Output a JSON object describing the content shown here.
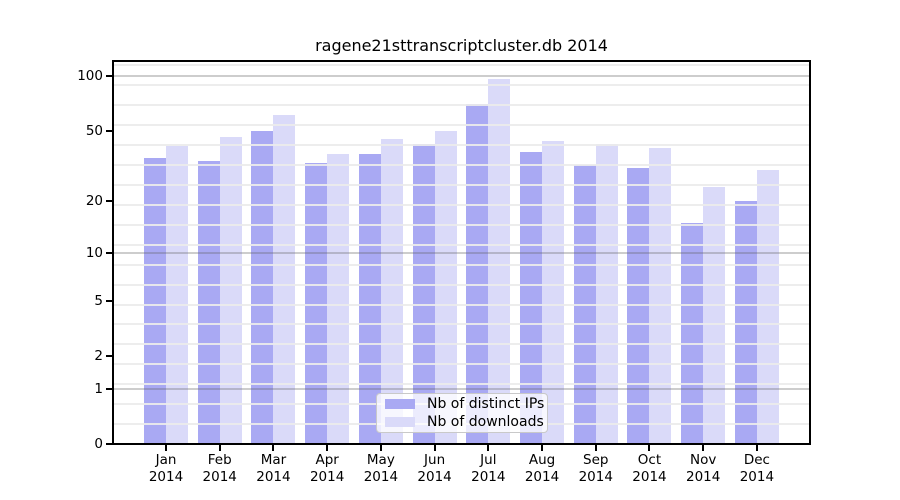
{
  "title": "ragene21sttranscriptcluster.db 2014",
  "chart_data": {
    "type": "bar",
    "title": "ragene21sttranscriptcluster.db 2014",
    "categories": [
      "Jan",
      "Feb",
      "Mar",
      "Apr",
      "May",
      "Jun",
      "Jul",
      "Aug",
      "Sep",
      "Oct",
      "Nov",
      "Dec"
    ],
    "year_label": "2014",
    "series": [
      {
        "name": "Nb of distinct IPs",
        "color": "#a9a9f3",
        "values": [
          35,
          34,
          50,
          33,
          37,
          42,
          70,
          38,
          32,
          31,
          15,
          20
        ]
      },
      {
        "name": "Nb of downloads",
        "color": "#dadaf9",
        "values": [
          41,
          46,
          61,
          37,
          45,
          50,
          97,
          44,
          42,
          40,
          24,
          30
        ]
      }
    ],
    "yscale": "log1p",
    "ylim": [
      0,
      121
    ],
    "ytick_labels": [
      100,
      50,
      20,
      10,
      5,
      2,
      1,
      0
    ],
    "major_grid_values": [
      100,
      10,
      1
    ],
    "grid": true,
    "legend_position": "inside-bottom-center"
  },
  "colors": {
    "distinct_ips_bar": "#a9a9f3",
    "downloads_bar": "#dadaf9",
    "spine": "#000000",
    "grid_major": "#c5c5c5",
    "grid_minor": "#ededed",
    "legend_border": "#c9c9c9",
    "background": "#ffffff"
  }
}
